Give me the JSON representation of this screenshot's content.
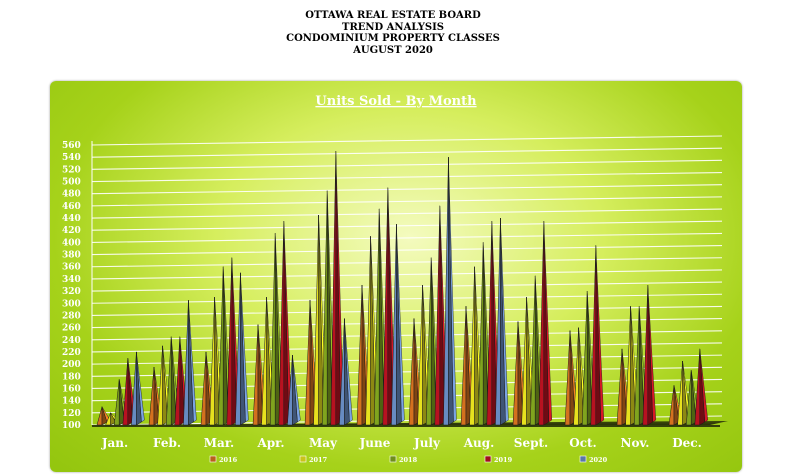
{
  "header": {
    "line1": "OTTAWA REAL ESTATE BOARD",
    "line2": "TREND ANALYSIS",
    "line3": "CONDOMINIUM PROPERTY CLASSES",
    "line4": "AUGUST 2020"
  },
  "colors": {
    "panel": "#a6d21a",
    "panel_center": "#f4fbbf",
    "gridline": "#ffffff",
    "text": "#ffffff"
  },
  "chart_data": {
    "type": "bar",
    "title": "Units Sold - By Month",
    "xlabel": "",
    "ylabel": "",
    "ylim": [
      100,
      560
    ],
    "yticks": [
      100,
      120,
      140,
      160,
      180,
      200,
      220,
      240,
      260,
      280,
      300,
      320,
      340,
      360,
      380,
      400,
      420,
      440,
      460,
      480,
      500,
      520,
      540,
      560
    ],
    "grid": true,
    "legend_position": "bottom",
    "categories": [
      "Jan.",
      "Feb.",
      "Mar.",
      "Apr.",
      "May",
      "June",
      "July",
      "Aug.",
      "Sept.",
      "Oct.",
      "Nov.",
      "Dec."
    ],
    "series": [
      {
        "name": "2016",
        "color": "#b8621a",
        "values": [
          130,
          195,
          220,
          265,
          305,
          330,
          275,
          295,
          270,
          255,
          225,
          165
        ]
      },
      {
        "name": "2017",
        "color": "#c9c41a",
        "values": [
          120,
          230,
          310,
          310,
          445,
          410,
          330,
          360,
          310,
          260,
          295,
          205
        ]
      },
      {
        "name": "2018",
        "color": "#6f8f1a",
        "values": [
          175,
          245,
          360,
          415,
          485,
          455,
          375,
          400,
          345,
          320,
          295,
          190
        ]
      },
      {
        "name": "2019",
        "color": "#a0101c",
        "values": [
          210,
          245,
          375,
          435,
          550,
          490,
          460,
          435,
          435,
          395,
          330,
          225
        ]
      },
      {
        "name": "2020",
        "color": "#5a79a8",
        "values": [
          220,
          305,
          350,
          215,
          275,
          430,
          540,
          440,
          null,
          null,
          null,
          null
        ]
      }
    ]
  }
}
